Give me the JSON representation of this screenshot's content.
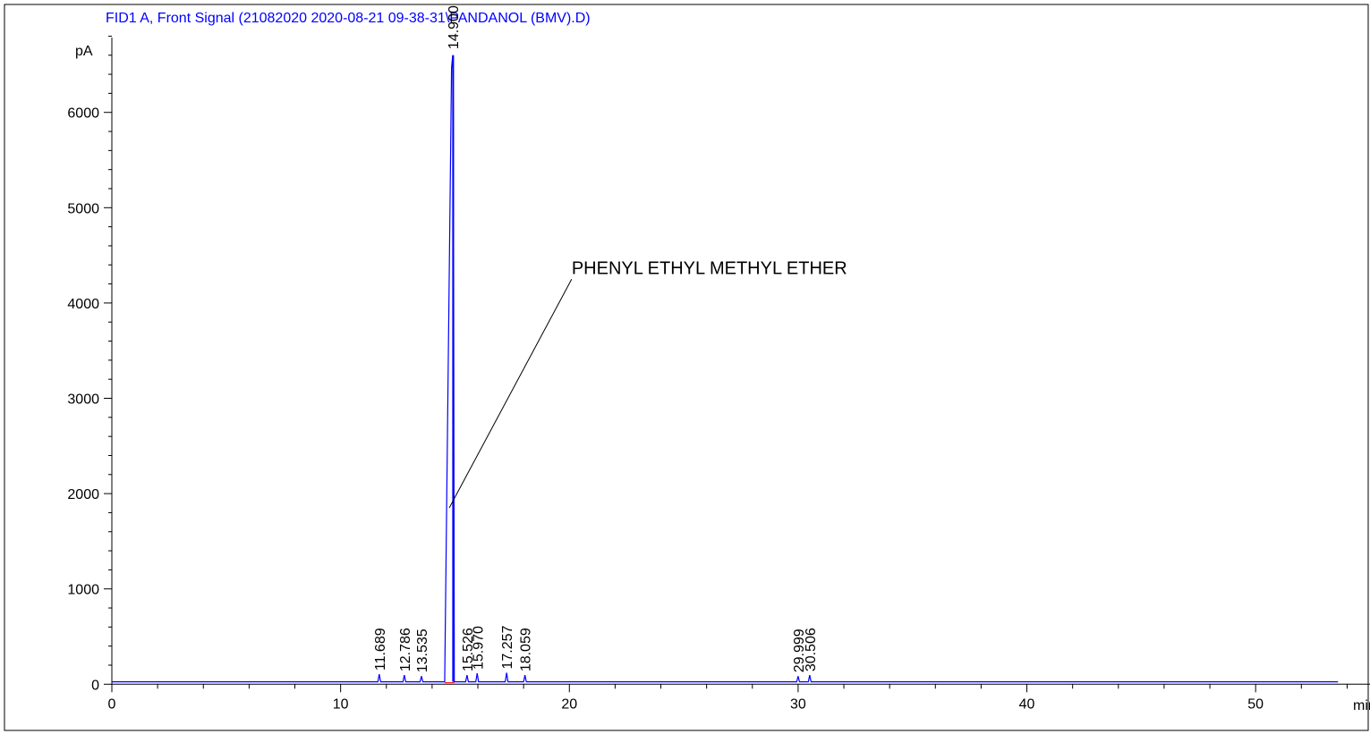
{
  "colors": {
    "signal": "#0000ff",
    "title": "#0000ff",
    "axis": "#000000",
    "baseline_marker": "#ff0000",
    "background": "#ffffff"
  },
  "chart_data": {
    "type": "line",
    "title": "FID1 A, Front Signal (21082020 2020-08-21 09-38-31\\PANDANOL (BMV).D)",
    "xlabel": "min",
    "ylabel": "pA",
    "xlim": [
      0,
      55
    ],
    "ylim": [
      -120,
      6850
    ],
    "x_ticks": [
      0,
      10,
      20,
      30,
      40,
      50
    ],
    "y_ticks": [
      0,
      1000,
      2000,
      3000,
      4000,
      5000,
      6000
    ],
    "baseline": 25,
    "trace_end_x": 53.6,
    "grid": false,
    "legend": "none",
    "peaks": [
      {
        "rt": 11.689,
        "label": "11.689",
        "height": 80
      },
      {
        "rt": 12.786,
        "label": "12.786",
        "height": 70
      },
      {
        "rt": 13.535,
        "label": "13.535",
        "height": 60
      },
      {
        "rt": 14.9,
        "label": "14.900",
        "height": 6600,
        "leading_edge_start": 14.55,
        "trailing_edge_end": 14.97
      },
      {
        "rt": 15.526,
        "label": "15.526",
        "height": 70
      },
      {
        "rt": 15.97,
        "label": "15.970",
        "height": 90
      },
      {
        "rt": 17.257,
        "label": "17.257",
        "height": 95
      },
      {
        "rt": 18.059,
        "label": "18.059",
        "height": 70
      },
      {
        "rt": 29.999,
        "label": "29.999",
        "height": 60
      },
      {
        "rt": 30.506,
        "label": "30.506",
        "height": 70
      }
    ],
    "annotations": [
      {
        "text": "PHENYL ETHYL METHYL ETHER",
        "x": 20.1,
        "y": 4250,
        "point_x": 14.75,
        "point_y": 1850
      }
    ]
  }
}
